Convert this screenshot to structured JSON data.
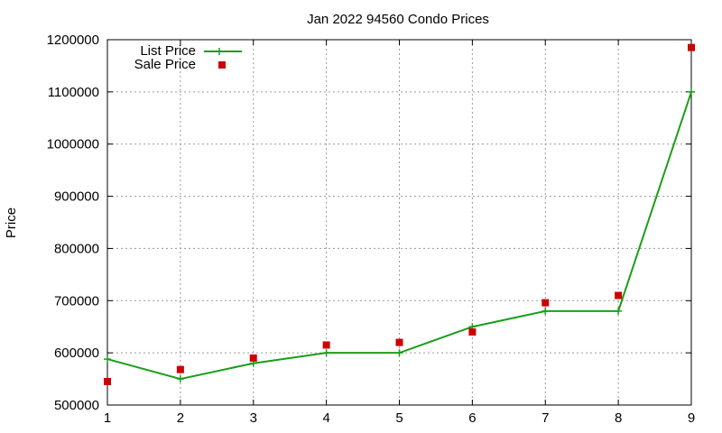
{
  "chart_data": {
    "type": "line",
    "title": "Jan 2022 94560 Condo Prices",
    "xlabel": "",
    "ylabel": "Price",
    "x": [
      1,
      2,
      3,
      4,
      5,
      6,
      7,
      8,
      9
    ],
    "xlim": [
      1,
      9
    ],
    "ylim": [
      500000,
      1200000
    ],
    "xticks": [
      "1",
      "2",
      "3",
      "4",
      "5",
      "6",
      "7",
      "8",
      "9"
    ],
    "yticks": [
      "500000",
      "600000",
      "700000",
      "800000",
      "900000",
      "1000000",
      "1100000",
      "1200000"
    ],
    "grid": true,
    "legend_position": "top-left",
    "series": [
      {
        "name": "List Price",
        "style": "line-with-plus-markers",
        "color": "#1a9e1a",
        "values": [
          588000,
          550000,
          580000,
          600000,
          600000,
          650000,
          680000,
          680000,
          1100000
        ]
      },
      {
        "name": "Sale Price",
        "style": "square-markers",
        "color": "#cc0000",
        "values": [
          545000,
          568000,
          590000,
          615000,
          620000,
          640000,
          696000,
          710000,
          1185000
        ]
      }
    ]
  }
}
